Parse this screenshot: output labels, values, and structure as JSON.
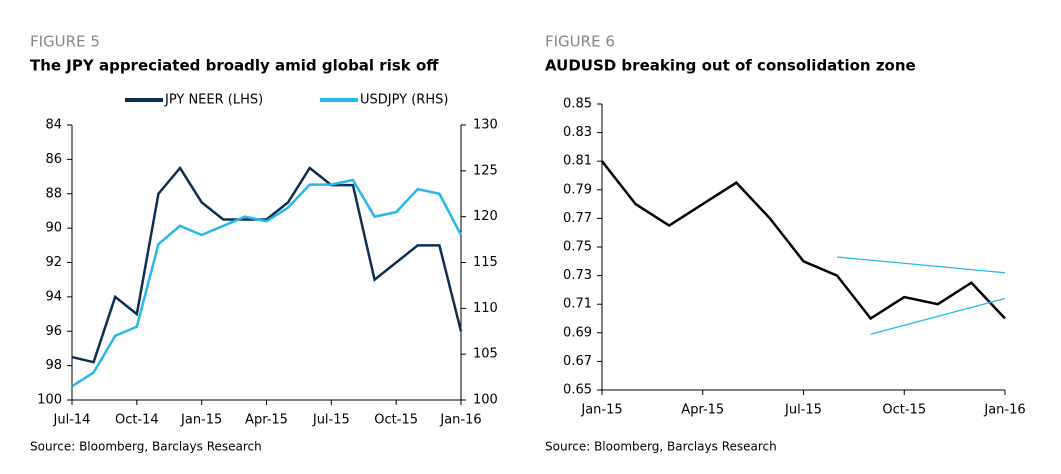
{
  "chart_data": [
    {
      "type": "line",
      "figure_label": "FIGURE 5",
      "title": "The JPY appreciated broadly amid global risk off",
      "source": "Source: Bloomberg, Barclays Research",
      "x": [
        "2014-07",
        "2014-08",
        "2014-09",
        "2014-10",
        "2014-11",
        "2014-12",
        "2015-01",
        "2015-02",
        "2015-03",
        "2015-04",
        "2015-05",
        "2015-06",
        "2015-07",
        "2015-08",
        "2015-09",
        "2015-10",
        "2015-11",
        "2015-12",
        "2016-01"
      ],
      "xlim": [
        "2014-07",
        "2016-01"
      ],
      "xticks": [
        {
          "value": "2014-07",
          "label": "Jul-14"
        },
        {
          "value": "2014-10",
          "label": "Oct-14"
        },
        {
          "value": "2015-01",
          "label": "Jan-15"
        },
        {
          "value": "2015-04",
          "label": "Apr-15"
        },
        {
          "value": "2015-07",
          "label": "Jul-15"
        },
        {
          "value": "2015-10",
          "label": "Oct-15"
        },
        {
          "value": "2016-01",
          "label": "Jan-16"
        }
      ],
      "ylim": [
        100,
        84
      ],
      "yticks": [
        84,
        86,
        88,
        90,
        92,
        94,
        96,
        98,
        100
      ],
      "y2lim": [
        100,
        130
      ],
      "y2ticks": [
        100,
        105,
        110,
        115,
        120,
        125,
        130
      ],
      "legend": "top",
      "series": [
        {
          "name": "JPY NEER (LHS)",
          "color": "#0d2f52",
          "values": [
            97.5,
            97.8,
            94,
            95,
            88,
            86.5,
            88.5,
            89.5,
            89.5,
            89.5,
            88.5,
            86.5,
            87.5,
            87.5,
            93,
            92,
            91,
            91,
            96
          ]
        },
        {
          "name": "USDJPY (RHS)",
          "color": "#27b7ea",
          "axis": "y2",
          "values": [
            101.5,
            103,
            107,
            108,
            117,
            119,
            118,
            119,
            120,
            119.5,
            121,
            123.5,
            123.5,
            124,
            120,
            120.5,
            123,
            122.5,
            118
          ]
        }
      ]
    },
    {
      "type": "line",
      "figure_label": "FIGURE 6",
      "title": "AUDUSD breaking out of consolidation zone",
      "source": "Source: Bloomberg, Barclays Research",
      "x": [
        "2015-01",
        "2015-02",
        "2015-03",
        "2015-04",
        "2015-05",
        "2015-06",
        "2015-07",
        "2015-08",
        "2015-09",
        "2015-10",
        "2015-11",
        "2015-12",
        "2016-01"
      ],
      "xlim": [
        "2015-01",
        "2016-01"
      ],
      "xticks": [
        {
          "value": "2015-01",
          "label": "Jan-15"
        },
        {
          "value": "2015-04",
          "label": "Apr-15"
        },
        {
          "value": "2015-07",
          "label": "Jul-15"
        },
        {
          "value": "2015-10",
          "label": "Oct-15"
        },
        {
          "value": "2016-01",
          "label": "Jan-16"
        }
      ],
      "ylim": [
        0.65,
        0.85
      ],
      "yticks": [
        0.65,
        0.67,
        0.69,
        0.71,
        0.73,
        0.75,
        0.77,
        0.79,
        0.81,
        0.83,
        0.85
      ],
      "series": [
        {
          "color": "#000000",
          "values": [
            0.81,
            0.78,
            0.765,
            0.78,
            0.795,
            0.77,
            0.74,
            0.73,
            0.7,
            0.715,
            0.71,
            0.725,
            0.7
          ]
        },
        {
          "color": "#27b7ea",
          "x": [
            "2015-08",
            "2016-01"
          ],
          "values": [
            0.743,
            0.732
          ]
        },
        {
          "color": "#27b7ea",
          "x": [
            "2015-09",
            "2016-01"
          ],
          "values": [
            0.689,
            0.714
          ]
        }
      ]
    }
  ]
}
